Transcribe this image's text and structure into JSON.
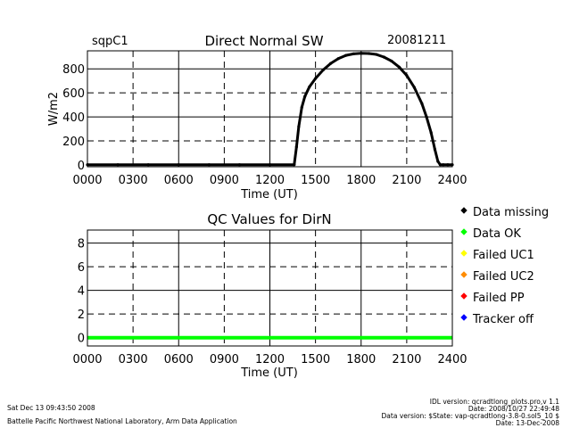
{
  "header": {
    "site": "sqpC1",
    "date": "20081211"
  },
  "legend": [
    {
      "label": "Data missing",
      "color": "#000000"
    },
    {
      "label": "Data OK",
      "color": "#00ff00"
    },
    {
      "label": "Failed UC1",
      "color": "#ffff00"
    },
    {
      "label": "Failed UC2",
      "color": "#ff8c00"
    },
    {
      "label": "Failed PP",
      "color": "#ff0000"
    },
    {
      "label": "Tracker off",
      "color": "#0000ff"
    }
  ],
  "footer": {
    "timestamp": "Sat Dec 13 09:43:50 2008",
    "lab": "Battelle Pacific Northwest National Laboratory, Arm Data Application",
    "idl_version": "IDL version: qcradtlong_plots.pro,v 1.1",
    "idl_date": "Date: 2008/10/27 22:49:48",
    "data_version": "Data version: $State: vap-qcradtlong-3.8-0.sol5_10 $",
    "data_date": "Date: 13-Dec-2008"
  },
  "chart_data": [
    {
      "type": "scatter",
      "title": "Direct Normal SW",
      "xlabel": "Time (UT)",
      "ylabel": "W/m2",
      "x_ticks": [
        "0000",
        "0300",
        "0600",
        "0900",
        "1200",
        "1500",
        "1800",
        "2100",
        "2400"
      ],
      "y_ticks": [
        "0",
        "200",
        "400",
        "600",
        "800"
      ],
      "xlim": [
        0,
        24
      ],
      "ylim": [
        -15,
        950
      ],
      "grid": true,
      "series": [
        {
          "color": "#000000",
          "x": [
            0,
            2,
            4,
            6,
            8,
            10,
            12,
            13.6,
            13.75,
            13.9,
            14.1,
            14.3,
            14.6,
            15.0,
            15.5,
            16.0,
            16.5,
            17.0,
            17.5,
            18.0,
            18.5,
            19.0,
            19.5,
            20.0,
            20.5,
            21.0,
            21.5,
            22.0,
            22.3,
            22.6,
            22.85,
            23.05,
            23.2,
            23.4,
            23.7,
            24
          ],
          "y": [
            2,
            2,
            2,
            2,
            2,
            2,
            2,
            2,
            150,
            320,
            480,
            570,
            650,
            720,
            790,
            845,
            885,
            912,
            925,
            930,
            928,
            920,
            898,
            865,
            815,
            745,
            645,
            510,
            400,
            270,
            130,
            30,
            2,
            2,
            2,
            2
          ]
        }
      ]
    },
    {
      "type": "line",
      "title": "QC Values for DirN",
      "xlabel": "Time (UT)",
      "x_ticks": [
        "0000",
        "0300",
        "0600",
        "0900",
        "1200",
        "1500",
        "1800",
        "2100",
        "2400"
      ],
      "y_ticks": [
        "0",
        "2",
        "4",
        "6",
        "8"
      ],
      "xlim": [
        0,
        24
      ],
      "ylim": [
        -0.7,
        9.1
      ],
      "grid": true,
      "series": [
        {
          "color": "#00ff00",
          "x": [
            0,
            24
          ],
          "y": [
            0,
            0
          ]
        }
      ]
    }
  ]
}
